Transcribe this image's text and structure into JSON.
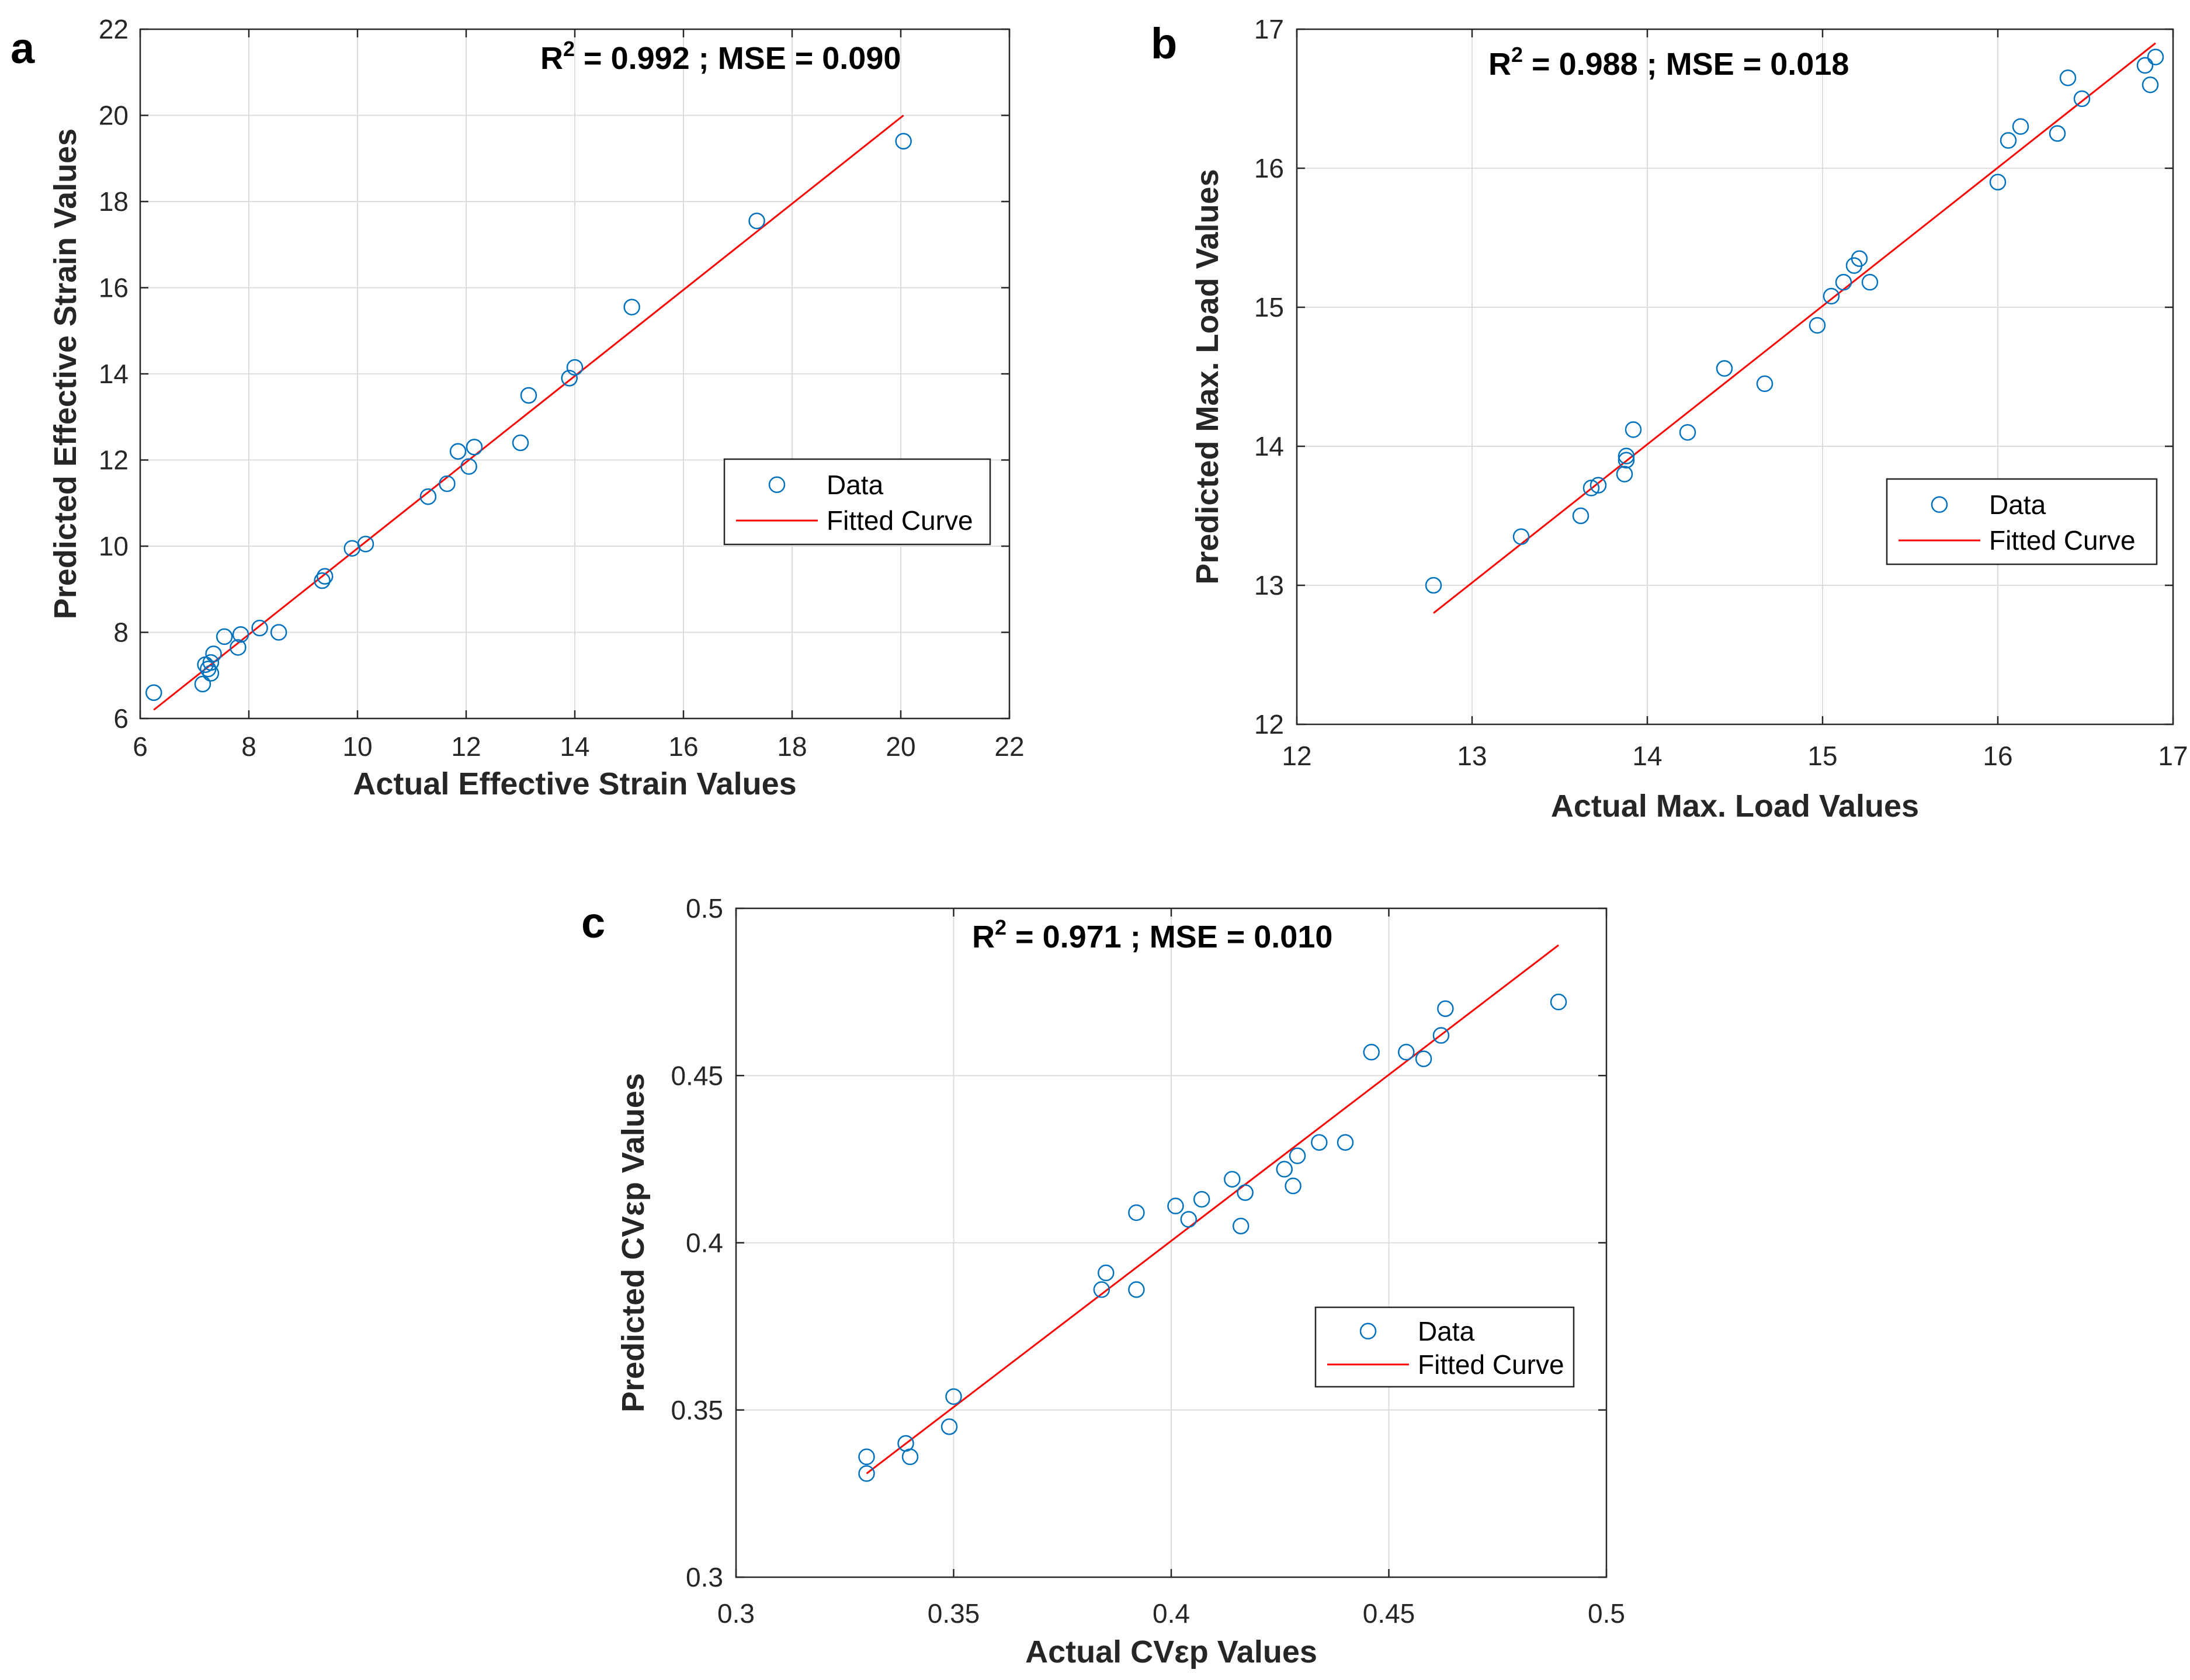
{
  "colors": {
    "data": "#0072BD",
    "fit": "#FF0000",
    "grid": "#DDDDDD",
    "axis": "#262626"
  },
  "chart_data": [
    {
      "type": "scatter",
      "panel_label": "a",
      "annotation": {
        "r_text": "R",
        "r_sup": "2",
        "rest": " = 0.992 ; MSE = 0.090"
      },
      "xlabel": "Actual Effective Strain Values",
      "ylabel": "Predicted Effective Strain Values",
      "xlim": [
        6,
        22
      ],
      "ylim": [
        6,
        22
      ],
      "xticks": [
        6,
        8,
        10,
        12,
        14,
        16,
        18,
        20,
        22
      ],
      "yticks": [
        6,
        8,
        10,
        12,
        14,
        16,
        18,
        20,
        22
      ],
      "tick_labels": {
        "x": [
          "6",
          "8",
          "10",
          "12",
          "14",
          "16",
          "18",
          "20",
          "22"
        ],
        "y": [
          "6",
          "8",
          "10",
          "12",
          "14",
          "16",
          "18",
          "20",
          "22"
        ]
      },
      "grid": true,
      "legend": {
        "entries": [
          "Data",
          "Fitted Curve"
        ],
        "location": "center-right"
      },
      "series": [
        {
          "name": "Data",
          "marker": "circle",
          "points": [
            [
              6.25,
              6.6
            ],
            [
              7.15,
              6.8
            ],
            [
              7.2,
              7.25
            ],
            [
              7.25,
              7.15
            ],
            [
              7.3,
              7.3
            ],
            [
              7.3,
              7.05
            ],
            [
              7.35,
              7.5
            ],
            [
              7.55,
              7.9
            ],
            [
              7.8,
              7.65
            ],
            [
              7.85,
              7.95
            ],
            [
              8.2,
              8.1
            ],
            [
              8.55,
              8.0
            ],
            [
              9.35,
              9.2
            ],
            [
              9.4,
              9.3
            ],
            [
              9.9,
              9.95
            ],
            [
              10.15,
              10.05
            ],
            [
              11.3,
              11.15
            ],
            [
              11.65,
              11.45
            ],
            [
              11.85,
              12.2
            ],
            [
              12.05,
              11.85
            ],
            [
              12.15,
              12.3
            ],
            [
              13.0,
              12.4
            ],
            [
              13.15,
              13.5
            ],
            [
              13.9,
              13.9
            ],
            [
              14.0,
              14.15
            ],
            [
              15.05,
              15.55
            ],
            [
              17.35,
              17.55
            ],
            [
              20.05,
              19.4
            ]
          ]
        },
        {
          "name": "Fitted Curve",
          "line": [
            [
              6.25,
              6.2
            ],
            [
              20.05,
              20.0
            ]
          ]
        }
      ]
    },
    {
      "type": "scatter",
      "panel_label": "b",
      "annotation": {
        "r_text": "R",
        "r_sup": "2",
        "rest": " = 0.988 ; MSE = 0.018"
      },
      "xlabel": "Actual Max. Load Values",
      "ylabel": "Predicted Max. Load Values",
      "xlim": [
        12,
        17
      ],
      "ylim": [
        12,
        17
      ],
      "xticks": [
        12,
        13,
        14,
        15,
        16,
        17
      ],
      "yticks": [
        12,
        13,
        14,
        15,
        16,
        17
      ],
      "tick_labels": {
        "x": [
          "12",
          "13",
          "14",
          "15",
          "16",
          "17"
        ],
        "y": [
          "12",
          "13",
          "14",
          "15",
          "16",
          "17"
        ]
      },
      "grid": true,
      "legend": {
        "entries": [
          "Data",
          "Fitted Curve"
        ],
        "location": "lower-right"
      },
      "series": [
        {
          "name": "Data",
          "marker": "circle",
          "points": [
            [
              12.78,
              13.0
            ],
            [
              13.28,
              13.35
            ],
            [
              13.62,
              13.5
            ],
            [
              13.68,
              13.7
            ],
            [
              13.72,
              13.72
            ],
            [
              13.87,
              13.8
            ],
            [
              13.88,
              13.9
            ],
            [
              13.88,
              13.93
            ],
            [
              13.92,
              14.12
            ],
            [
              14.23,
              14.1
            ],
            [
              14.44,
              14.56
            ],
            [
              14.67,
              14.45
            ],
            [
              14.97,
              14.87
            ],
            [
              15.05,
              15.08
            ],
            [
              15.12,
              15.18
            ],
            [
              15.18,
              15.3
            ],
            [
              15.21,
              15.35
            ],
            [
              15.27,
              15.18
            ],
            [
              16.0,
              15.9
            ],
            [
              16.06,
              16.2
            ],
            [
              16.13,
              16.3
            ],
            [
              16.34,
              16.25
            ],
            [
              16.4,
              16.65
            ],
            [
              16.48,
              16.5
            ],
            [
              16.84,
              16.74
            ],
            [
              16.87,
              16.6
            ],
            [
              16.9,
              16.8
            ]
          ]
        },
        {
          "name": "Fitted Curve",
          "line": [
            [
              12.78,
              12.8
            ],
            [
              16.9,
              16.9
            ]
          ]
        }
      ]
    },
    {
      "type": "scatter",
      "panel_label": "c",
      "annotation": {
        "r_text": "R",
        "r_sup": "2",
        "rest": " = 0.971 ; MSE = 0.010"
      },
      "xlabel": "Actual CVεp Values",
      "ylabel": "Predicted CVεp Values",
      "xlim": [
        0.3,
        0.5
      ],
      "ylim": [
        0.3,
        0.5
      ],
      "xticks": [
        0.3,
        0.35,
        0.4,
        0.45,
        0.5
      ],
      "yticks": [
        0.3,
        0.35,
        0.4,
        0.45,
        0.5
      ],
      "tick_labels": {
        "x": [
          "0.3",
          "0.35",
          "0.4",
          "0.45",
          "0.5"
        ],
        "y": [
          "0.3",
          "0.35",
          "0.4",
          "0.45",
          "0.5"
        ]
      },
      "grid": true,
      "legend": {
        "entries": [
          "Data",
          "Fitted Curve"
        ],
        "location": "lower-right"
      },
      "series": [
        {
          "name": "Data",
          "marker": "circle",
          "points": [
            [
              0.33,
              0.331
            ],
            [
              0.33,
              0.336
            ],
            [
              0.339,
              0.34
            ],
            [
              0.34,
              0.336
            ],
            [
              0.349,
              0.345
            ],
            [
              0.35,
              0.354
            ],
            [
              0.384,
              0.386
            ],
            [
              0.385,
              0.391
            ],
            [
              0.392,
              0.386
            ],
            [
              0.392,
              0.409
            ],
            [
              0.401,
              0.411
            ],
            [
              0.404,
              0.407
            ],
            [
              0.407,
              0.413
            ],
            [
              0.414,
              0.419
            ],
            [
              0.416,
              0.405
            ],
            [
              0.417,
              0.415
            ],
            [
              0.426,
              0.422
            ],
            [
              0.428,
              0.417
            ],
            [
              0.429,
              0.426
            ],
            [
              0.434,
              0.43
            ],
            [
              0.44,
              0.43
            ],
            [
              0.446,
              0.457
            ],
            [
              0.454,
              0.457
            ],
            [
              0.458,
              0.455
            ],
            [
              0.462,
              0.462
            ],
            [
              0.463,
              0.47
            ],
            [
              0.489,
              0.472
            ]
          ]
        },
        {
          "name": "Fitted Curve",
          "line": [
            [
              0.33,
              0.331
            ],
            [
              0.489,
              0.489
            ]
          ]
        }
      ]
    }
  ]
}
